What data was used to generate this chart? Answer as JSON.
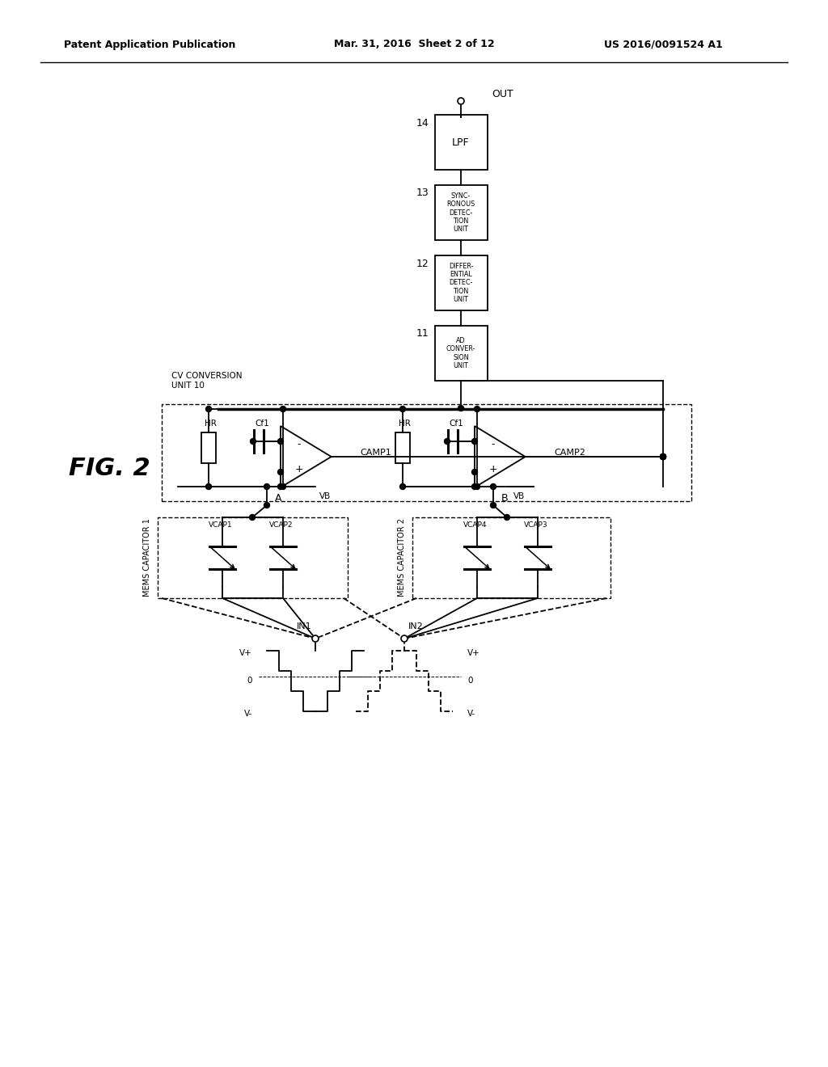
{
  "bg_color": "#ffffff",
  "title_left": "Patent Application Publication",
  "title_mid": "Mar. 31, 2016  Sheet 2 of 12",
  "title_right": "US 2016/0091524 A1",
  "fig_label": "FIG. 2"
}
